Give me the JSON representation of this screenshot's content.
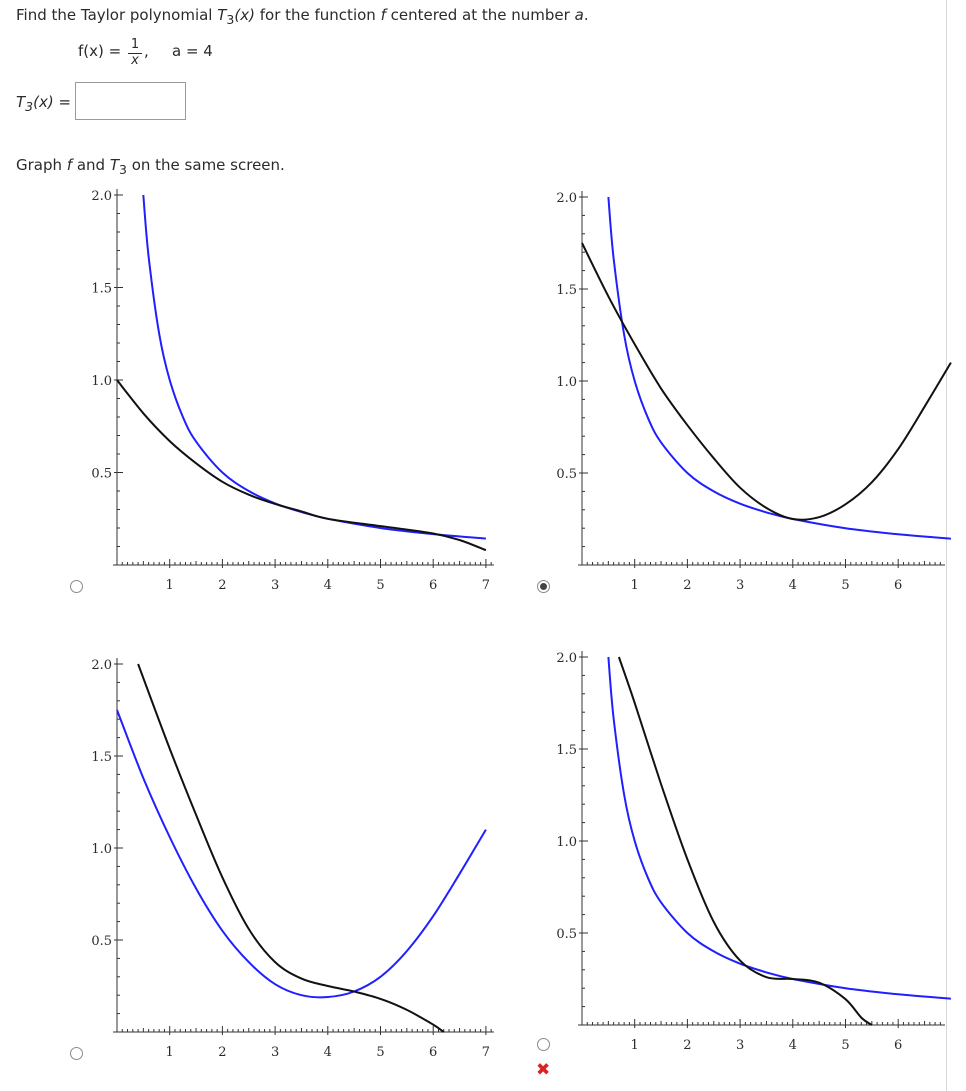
{
  "question": {
    "prefix": "Find the Taylor polynomial ",
    "poly": "T",
    "poly_sub": "3",
    "poly_arg": "(x)",
    "middle": " for the function ",
    "func": "f",
    "middle2": " centered at the number ",
    "a_var": "a",
    "end": "."
  },
  "given": {
    "fx": "f(x) = ",
    "frac_num": "1",
    "frac_den": "x",
    "comma": ",",
    "a_eq": "a = 4"
  },
  "answer": {
    "label": "T",
    "label_sub": "3",
    "label_rest": "(x) =",
    "value": ""
  },
  "graph_instruction": {
    "prefix": "Graph ",
    "f": "f",
    "and": " and ",
    "T": "T",
    "T_sub": "3",
    "suffix": " on the same screen."
  },
  "colors": {
    "f_curve": "#1f1fff",
    "t3_curve": "#111111",
    "wrong": "#dd2222"
  },
  "feedback": {
    "wrong_icon": "red-x-icon"
  },
  "chart_data": [
    {
      "type": "line",
      "option": 1,
      "selected": false,
      "xlim": [
        0,
        7
      ],
      "ylim": [
        0,
        2
      ],
      "x_ticks": [
        "1",
        "2",
        "3",
        "4",
        "5",
        "6",
        "7"
      ],
      "y_ticks": [
        "0.5",
        "1.0",
        "1.5",
        "2.0"
      ],
      "series": [
        {
          "color": "#1f1fff",
          "points": [
            [
              0.5,
              2.0
            ],
            [
              0.6,
              1.667
            ],
            [
              0.8,
              1.25
            ],
            [
              1.0,
              1.0
            ],
            [
              1.25,
              0.8
            ],
            [
              1.5,
              0.667
            ],
            [
              2.0,
              0.5
            ],
            [
              2.5,
              0.4
            ],
            [
              3.0,
              0.333
            ],
            [
              3.5,
              0.286
            ],
            [
              4.0,
              0.25
            ],
            [
              5.0,
              0.2
            ],
            [
              6.0,
              0.167
            ],
            [
              7.0,
              0.143
            ]
          ]
        },
        {
          "color": "#111111",
          "points": [
            [
              0.0,
              1.0
            ],
            [
              0.5,
              0.82
            ],
            [
              1.0,
              0.67
            ],
            [
              1.5,
              0.55
            ],
            [
              2.0,
              0.45
            ],
            [
              2.5,
              0.38
            ],
            [
              3.0,
              0.33
            ],
            [
              3.5,
              0.29
            ],
            [
              4.0,
              0.25
            ],
            [
              5.0,
              0.21
            ],
            [
              6.0,
              0.17
            ],
            [
              6.5,
              0.135
            ],
            [
              7.0,
              0.08
            ]
          ]
        }
      ]
    },
    {
      "type": "line",
      "option": 2,
      "selected": true,
      "xlim": [
        0,
        7
      ],
      "ylim": [
        0,
        2
      ],
      "x_ticks": [
        "1",
        "2",
        "3",
        "4",
        "5",
        "6"
      ],
      "y_ticks": [
        "0.5",
        "1.0",
        "1.5",
        "2.0"
      ],
      "series": [
        {
          "color": "#1f1fff",
          "points": [
            [
              0.5,
              2.0
            ],
            [
              0.6,
              1.667
            ],
            [
              0.8,
              1.25
            ],
            [
              1.0,
              1.0
            ],
            [
              1.25,
              0.8
            ],
            [
              1.5,
              0.667
            ],
            [
              2.0,
              0.5
            ],
            [
              2.5,
              0.4
            ],
            [
              3.0,
              0.333
            ],
            [
              3.5,
              0.286
            ],
            [
              4.0,
              0.25
            ],
            [
              5.0,
              0.2
            ],
            [
              6.0,
              0.167
            ],
            [
              7.0,
              0.143
            ]
          ]
        },
        {
          "color": "#111111",
          "points": [
            [
              0.0,
              1.75
            ],
            [
              0.5,
              1.46
            ],
            [
              1.0,
              1.2
            ],
            [
              1.5,
              0.96
            ],
            [
              2.0,
              0.76
            ],
            [
              2.5,
              0.58
            ],
            [
              3.0,
              0.42
            ],
            [
              3.5,
              0.31
            ],
            [
              4.0,
              0.25
            ],
            [
              4.5,
              0.26
            ],
            [
              5.0,
              0.33
            ],
            [
              5.5,
              0.45
            ],
            [
              6.0,
              0.63
            ],
            [
              6.5,
              0.86
            ],
            [
              7.0,
              1.1
            ]
          ]
        }
      ]
    },
    {
      "type": "line",
      "option": 3,
      "selected": false,
      "xlim": [
        0,
        7
      ],
      "ylim": [
        0,
        2
      ],
      "x_ticks": [
        "1",
        "2",
        "3",
        "4",
        "5",
        "6",
        "7"
      ],
      "y_ticks": [
        "0.5",
        "1.0",
        "1.5",
        "2.0"
      ],
      "series": [
        {
          "color": "#1f1fff",
          "points": [
            [
              0.0,
              1.75
            ],
            [
              0.5,
              1.38
            ],
            [
              1.0,
              1.06
            ],
            [
              1.5,
              0.78
            ],
            [
              2.0,
              0.55
            ],
            [
              2.5,
              0.38
            ],
            [
              3.0,
              0.26
            ],
            [
              3.5,
              0.2
            ],
            [
              4.0,
              0.19
            ],
            [
              4.5,
              0.22
            ],
            [
              5.0,
              0.3
            ],
            [
              5.5,
              0.44
            ],
            [
              6.0,
              0.63
            ],
            [
              6.5,
              0.86
            ],
            [
              7.0,
              1.1
            ]
          ]
        },
        {
          "color": "#111111",
          "points": [
            [
              0.4,
              2.0
            ],
            [
              1.0,
              1.54
            ],
            [
              1.5,
              1.18
            ],
            [
              2.0,
              0.84
            ],
            [
              2.5,
              0.56
            ],
            [
              3.0,
              0.38
            ],
            [
              3.5,
              0.29
            ],
            [
              4.0,
              0.25
            ],
            [
              4.5,
              0.22
            ],
            [
              5.0,
              0.18
            ],
            [
              5.5,
              0.12
            ],
            [
              6.0,
              0.04
            ],
            [
              6.2,
              0.0
            ]
          ]
        }
      ]
    },
    {
      "type": "line",
      "option": 4,
      "selected": false,
      "marked_incorrect": true,
      "xlim": [
        0,
        7
      ],
      "ylim": [
        0,
        2
      ],
      "x_ticks": [
        "1",
        "2",
        "3",
        "4",
        "5",
        "6"
      ],
      "y_ticks": [
        "0.5",
        "1.0",
        "1.5",
        "2.0"
      ],
      "series": [
        {
          "color": "#1f1fff",
          "points": [
            [
              0.5,
              2.0
            ],
            [
              0.6,
              1.667
            ],
            [
              0.8,
              1.25
            ],
            [
              1.0,
              1.0
            ],
            [
              1.25,
              0.8
            ],
            [
              1.5,
              0.667
            ],
            [
              2.0,
              0.5
            ],
            [
              2.5,
              0.4
            ],
            [
              3.0,
              0.333
            ],
            [
              3.5,
              0.286
            ],
            [
              4.0,
              0.25
            ],
            [
              5.0,
              0.2
            ],
            [
              6.0,
              0.167
            ],
            [
              7.0,
              0.143
            ]
          ]
        },
        {
          "color": "#111111",
          "points": [
            [
              0.7,
              2.0
            ],
            [
              1.0,
              1.75
            ],
            [
              1.5,
              1.31
            ],
            [
              2.0,
              0.9
            ],
            [
              2.5,
              0.56
            ],
            [
              3.0,
              0.35
            ],
            [
              3.5,
              0.26
            ],
            [
              4.0,
              0.25
            ],
            [
              4.5,
              0.23
            ],
            [
              5.0,
              0.14
            ],
            [
              5.3,
              0.04
            ],
            [
              5.5,
              0.0
            ]
          ]
        }
      ]
    }
  ]
}
